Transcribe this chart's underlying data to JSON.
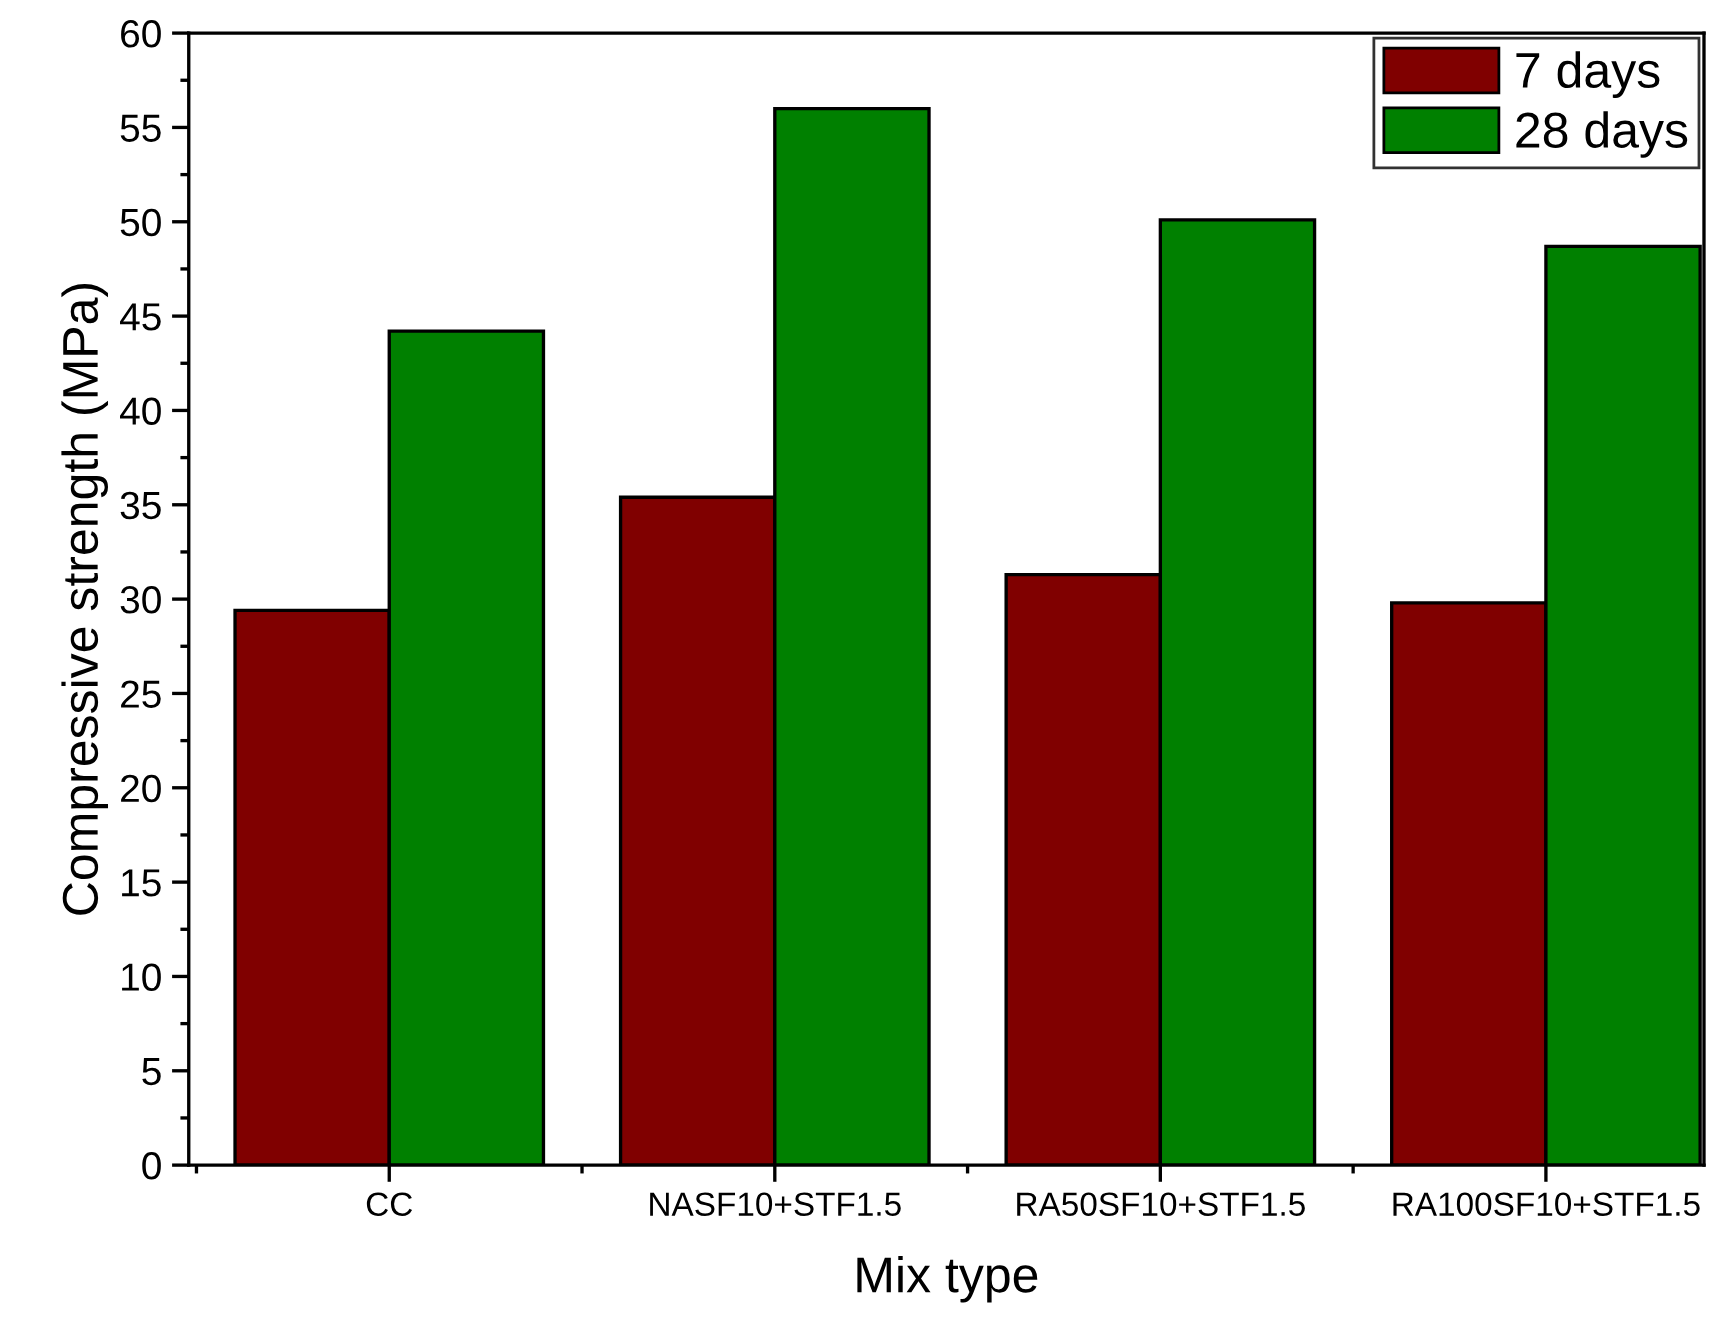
{
  "chart_data": {
    "type": "bar",
    "xlabel": "Mix type",
    "ylabel": "Compressive strength (MPa)",
    "categories": [
      "CC",
      "NASF10+STF1.5",
      "RA50SF10+STF1.5",
      "RA100SF10+STF1.5"
    ],
    "series": [
      {
        "name": "7 days",
        "color": "#800000",
        "values": [
          29.4,
          35.4,
          31.3,
          29.8
        ]
      },
      {
        "name": "28 days",
        "color": "#008000",
        "values": [
          44.2,
          56.0,
          50.1,
          48.7
        ]
      }
    ],
    "ylim": [
      0,
      60
    ],
    "yticks": [
      0,
      5,
      10,
      15,
      20,
      25,
      30,
      35,
      40,
      45,
      50,
      55,
      60
    ],
    "grid": false,
    "legend": "top right"
  }
}
